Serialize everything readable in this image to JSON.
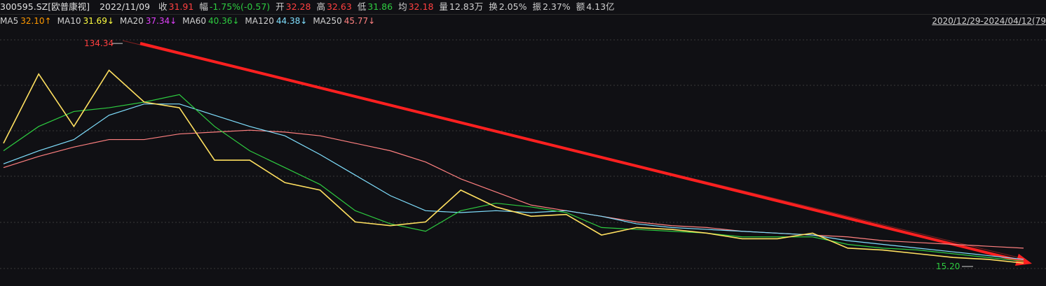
{
  "header": {
    "code": "300595.SZ[欧普康视]",
    "date": "2022/11/09",
    "items": [
      {
        "label": "收",
        "value": "31.91",
        "color": "#ff4040"
      },
      {
        "label": "幅",
        "value": "-1.75%(-0.57)",
        "color": "#2ecc40"
      },
      {
        "label": "开",
        "value": "32.28",
        "color": "#ff4040"
      },
      {
        "label": "高",
        "value": "32.63",
        "color": "#ff4040"
      },
      {
        "label": "低",
        "value": "31.86",
        "color": "#2ecc40"
      },
      {
        "label": "均",
        "value": "32.18",
        "color": "#ff4040"
      },
      {
        "label": "量",
        "value": "12.83万",
        "color": "#d0d0d0"
      },
      {
        "label": "换",
        "value": "2.05%",
        "color": "#d0d0d0"
      },
      {
        "label": "振",
        "value": "2.37%",
        "color": "#d0d0d0"
      },
      {
        "label": "额",
        "value": "4.13亿",
        "color": "#d0d0d0"
      }
    ]
  },
  "ma_row": [
    {
      "label": "MA5",
      "value": "32.10↑",
      "color": "#ff9900"
    },
    {
      "label": "MA10",
      "value": "31.69↓",
      "color": "#ffff40"
    },
    {
      "label": "MA20",
      "value": "37.34↓",
      "color": "#e040fb"
    },
    {
      "label": "MA60",
      "value": "40.36↓",
      "color": "#2ecc40"
    },
    {
      "label": "MA120",
      "value": "44.38↓",
      "color": "#80e0ff"
    },
    {
      "label": "MA250",
      "value": "45.77↓",
      "color": "#ff8080"
    }
  ],
  "date_range": "2020/12/29-2024/04/12(79",
  "chart_data": {
    "type": "line",
    "ylim": [
      10,
      137
    ],
    "annotations": [
      {
        "text": "134.34",
        "value": 134.34
      },
      {
        "text": "15.20",
        "value": 15.2
      }
    ],
    "series": [
      {
        "name": "MA250",
        "color": "#ff8080",
        "values": [
          68,
          74,
          79,
          83,
          83,
          86,
          87,
          88,
          87,
          85,
          81,
          77,
          71,
          62,
          55,
          48,
          45,
          42,
          39,
          37,
          36,
          34,
          33,
          32,
          31,
          29,
          28,
          27,
          26,
          25
        ]
      },
      {
        "name": "MA120",
        "color": "#80e0ff",
        "values": [
          70,
          77,
          83,
          96,
          102,
          102,
          96,
          90,
          85,
          75,
          64,
          53,
          45,
          44,
          45,
          44,
          45,
          42,
          38,
          36,
          35,
          34,
          33,
          32,
          29,
          27,
          25,
          23,
          21,
          19
        ]
      },
      {
        "name": "MA60",
        "color": "#2ecc40",
        "values": [
          77,
          90,
          98,
          100,
          103,
          107,
          90,
          77,
          68,
          59,
          45,
          38,
          34,
          45,
          49,
          47,
          44,
          36,
          35,
          34,
          33,
          31,
          31,
          31,
          27,
          25,
          24,
          22,
          20,
          18
        ]
      },
      {
        "name": "price",
        "color": "#ffe060",
        "values": [
          81,
          118,
          90,
          120,
          103,
          100,
          72,
          72,
          60,
          56,
          39,
          37,
          39,
          56,
          47,
          42,
          43,
          32,
          36,
          35,
          33,
          30,
          30,
          33,
          25,
          24,
          22,
          20,
          19,
          17
        ]
      }
    ]
  }
}
